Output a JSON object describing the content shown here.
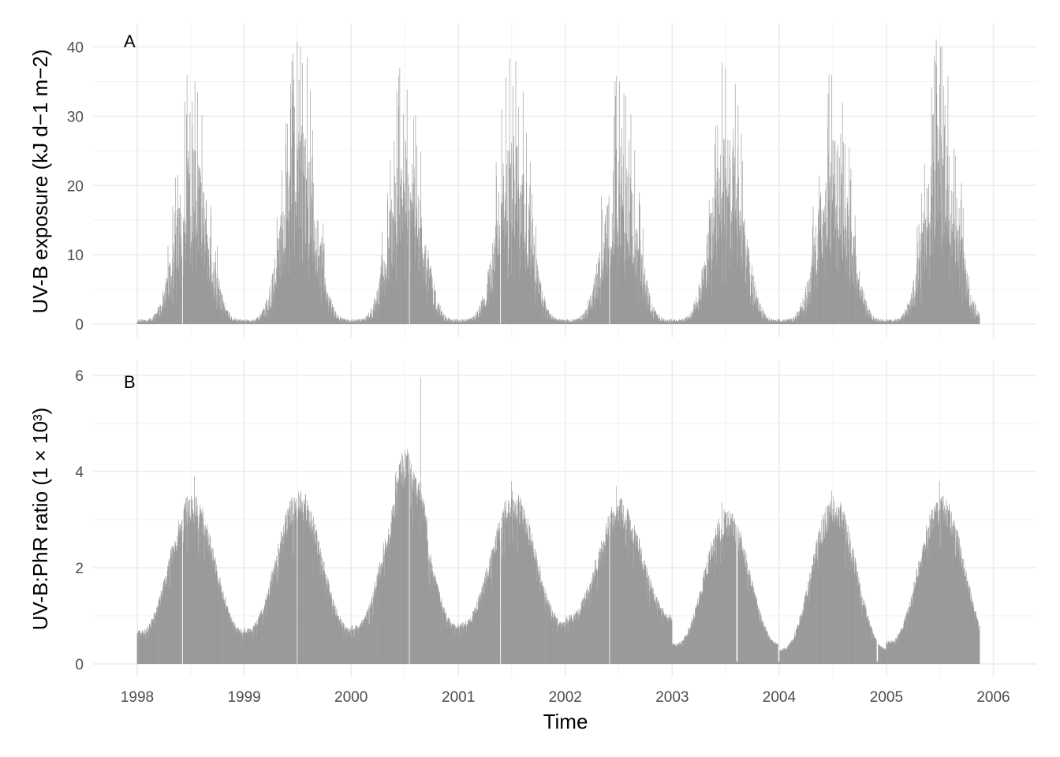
{
  "chart_data": {
    "type": "bar",
    "x_axis": {
      "title": "Time",
      "range": [
        "1997-10-01",
        "2006-04-01"
      ],
      "ticks": [
        "1998",
        "1999",
        "2000",
        "2001",
        "2002",
        "2003",
        "2004",
        "2005",
        "2006"
      ]
    },
    "bar_color": "#999999",
    "grid": true,
    "panels": [
      {
        "label": "A",
        "ylabel": "UV-B exposure (kJ d−1 m−2)",
        "ylim": [
          -2,
          43
        ],
        "y_ticks": [
          0,
          10,
          20,
          30,
          40
        ],
        "series": {
          "start": "1998-01-01",
          "end": "2005-11-15",
          "annual_peak": [
            35,
            40,
            37,
            38,
            35,
            37,
            36,
            40
          ],
          "winter_min": 0.6,
          "peaks": [
            {
              "date": "1998-06-20",
              "value": 36
            },
            {
              "date": "1999-07-01",
              "value": 40.8
            },
            {
              "date": "2000-06-15",
              "value": 37
            },
            {
              "date": "2001-06-25",
              "value": 38.3
            },
            {
              "date": "2002-06-25",
              "value": 35.8
            },
            {
              "date": "2003-06-20",
              "value": 37.7
            },
            {
              "date": "2004-06-28",
              "value": 36
            },
            {
              "date": "2005-06-20",
              "value": 41.1
            }
          ],
          "gaps": [
            "1998-06-05",
            "2000-07-18",
            "2001-05-25",
            "2002-06-01"
          ]
        }
      },
      {
        "label": "B",
        "ylabel": "UV-B:PhR ratio (1 × 10³)",
        "ylim": [
          -0.2,
          6.3
        ],
        "y_ticks": [
          0,
          2,
          4,
          6
        ],
        "series": {
          "start": "1998-01-01",
          "end": "2005-11-15",
          "annual_peak": [
            3.3,
            3.4,
            3.6,
            3.35,
            3.2,
            3.0,
            3.25,
            3.3
          ],
          "winter_min": [
            0.65,
            0.7,
            0.75,
            0.8,
            0.95,
            0.4,
            0.3,
            0.45
          ],
          "peaks": [
            {
              "date": "1998-07-15",
              "value": 3.9
            },
            {
              "date": "1999-07-01",
              "value": 3.85
            },
            {
              "date": "2000-08-25",
              "value": 5.95
            },
            {
              "date": "2001-07-01",
              "value": 3.8
            },
            {
              "date": "2002-06-25",
              "value": 3.7
            },
            {
              "date": "2003-06-20",
              "value": 3.35
            },
            {
              "date": "2004-06-28",
              "value": 3.6
            },
            {
              "date": "2005-07-01",
              "value": 3.8
            }
          ],
          "gaps": [
            "1998-06-05",
            "1999-07-01",
            "2000-07-18",
            "2001-05-25",
            "2002-06-01"
          ],
          "zero_dips": [
            "2003-08-10",
            "2003-12-31",
            "2004-12-01"
          ]
        }
      }
    ]
  }
}
